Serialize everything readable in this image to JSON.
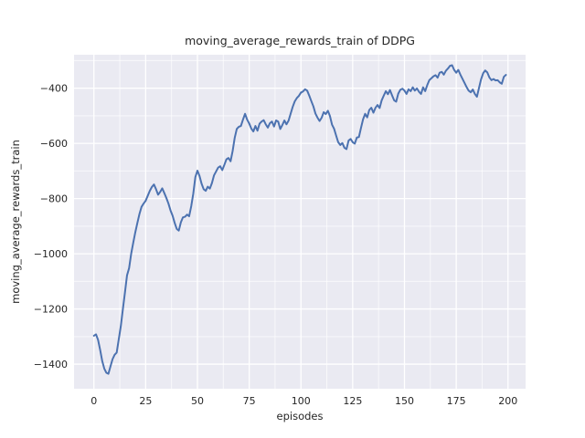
{
  "figure": {
    "background_color": "#ffffff",
    "axes_background_color": "#eaeaf2",
    "grid_color": "#ffffff",
    "text_color": "#262626"
  },
  "chart_data": {
    "type": "line",
    "title": "moving_average_rewards_train of DDPG",
    "xlabel": "episodes",
    "ylabel": "moving_average_rewards_train",
    "grid": "both",
    "legend": "none",
    "xlim": [
      -9.6,
      208.5
    ],
    "ylim": [
      -1489,
      -279
    ],
    "x_ticks": [
      0,
      25,
      50,
      75,
      100,
      125,
      150,
      175,
      200
    ],
    "x_tick_labels": [
      "0",
      "25",
      "50",
      "75",
      "100",
      "125",
      "150",
      "175",
      "200"
    ],
    "x_minor_ticks": [
      12.5,
      37.5,
      62.5,
      87.5,
      112.5,
      137.5,
      162.5,
      187.5
    ],
    "y_ticks": [
      -400,
      -600,
      -800,
      -1000,
      -1200,
      -1400
    ],
    "y_tick_labels": [
      "−400",
      "−600",
      "−800",
      "−1000",
      "−1200",
      "−1400"
    ],
    "y_minor_ticks": [
      -300,
      -500,
      -700,
      -900,
      -1100,
      -1300
    ],
    "series": [
      {
        "name": "moving_average_rewards_train",
        "color": "#4c72b0",
        "x_start": 0,
        "x_step": 1,
        "values": [
          -1297,
          -1292,
          -1312,
          -1348,
          -1388,
          -1416,
          -1431,
          -1435,
          -1408,
          -1382,
          -1366,
          -1358,
          -1310,
          -1262,
          -1200,
          -1140,
          -1078,
          -1052,
          -1000,
          -960,
          -922,
          -888,
          -856,
          -830,
          -818,
          -808,
          -790,
          -772,
          -758,
          -749,
          -766,
          -786,
          -776,
          -763,
          -780,
          -798,
          -818,
          -843,
          -862,
          -888,
          -910,
          -916,
          -886,
          -868,
          -866,
          -858,
          -864,
          -828,
          -782,
          -722,
          -699,
          -718,
          -746,
          -766,
          -772,
          -757,
          -764,
          -744,
          -716,
          -702,
          -688,
          -683,
          -697,
          -678,
          -658,
          -653,
          -665,
          -628,
          -580,
          -548,
          -540,
          -537,
          -514,
          -493,
          -514,
          -528,
          -546,
          -557,
          -537,
          -554,
          -529,
          -521,
          -516,
          -531,
          -543,
          -527,
          -521,
          -539,
          -517,
          -521,
          -548,
          -534,
          -517,
          -531,
          -518,
          -493,
          -468,
          -448,
          -436,
          -428,
          -416,
          -412,
          -404,
          -409,
          -427,
          -447,
          -466,
          -492,
          -507,
          -519,
          -507,
          -487,
          -494,
          -482,
          -501,
          -532,
          -547,
          -572,
          -596,
          -606,
          -599,
          -616,
          -621,
          -590,
          -584,
          -596,
          -601,
          -579,
          -577,
          -544,
          -513,
          -493,
          -506,
          -479,
          -471,
          -489,
          -471,
          -461,
          -472,
          -444,
          -427,
          -411,
          -422,
          -407,
          -426,
          -444,
          -449,
          -420,
          -406,
          -402,
          -409,
          -421,
          -404,
          -411,
          -397,
          -409,
          -401,
          -413,
          -421,
          -397,
          -411,
          -389,
          -371,
          -364,
          -357,
          -353,
          -362,
          -344,
          -341,
          -351,
          -337,
          -329,
          -319,
          -317,
          -334,
          -344,
          -334,
          -351,
          -366,
          -381,
          -396,
          -409,
          -415,
          -405,
          -421,
          -431,
          -399,
          -368,
          -346,
          -336,
          -343,
          -361,
          -371,
          -367,
          -372,
          -371,
          -379,
          -384,
          -359,
          -352
        ]
      }
    ]
  }
}
